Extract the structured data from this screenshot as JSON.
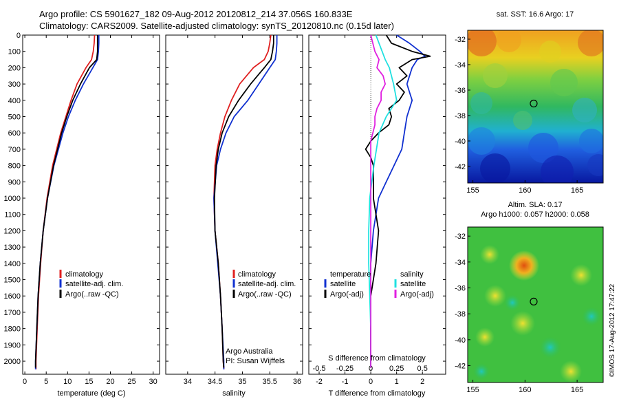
{
  "header": {
    "line1": "Argo profile: CS 5901627_182 09-Aug-2012 20120812_214 37.056S 160.833E",
    "line2": "Climatology: CARS2009. Satellite-adjusted climatology: synTS_20120810.nc (0.15d later)"
  },
  "colors": {
    "climatology": "#e02020",
    "satellite": "#1030d0",
    "argo": "#000000",
    "salinity_satellite": "#20e0e0",
    "salinity_argo": "#e020e0"
  },
  "chart_data": [
    {
      "type": "line",
      "panel": "temperature",
      "xlabel": "temperature (deg C)",
      "ylabel": "",
      "xlim": [
        -0.5,
        31.5
      ],
      "ylim": [
        2080,
        0
      ],
      "xticks": [
        "0",
        "5",
        "10",
        "15",
        "20",
        "25",
        "30"
      ],
      "yticks": [
        "0",
        "100",
        "200",
        "300",
        "400",
        "500",
        "600",
        "700",
        "800",
        "900",
        "1000",
        "1100",
        "1200",
        "1300",
        "1400",
        "1500",
        "1600",
        "1700",
        "1800",
        "1900",
        "2000"
      ],
      "legend": [
        "climatology",
        "satellite-adj. clim.",
        "Argo(..raw -QC)"
      ],
      "legend_placement": "lower-left",
      "series": [
        {
          "name": "climatology",
          "depth": [
            0,
            50,
            100,
            150,
            200,
            300,
            400,
            500,
            600,
            800,
            1000,
            1200,
            1400,
            1600,
            1800,
            2000,
            2050
          ],
          "values": [
            16.3,
            16.2,
            16.0,
            15.6,
            14.3,
            12.2,
            10.8,
            9.6,
            8.4,
            6.5,
            5.2,
            4.3,
            3.7,
            3.2,
            2.9,
            2.6,
            2.6
          ]
        },
        {
          "name": "satellite-adj. clim.",
          "depth": [
            0,
            50,
            100,
            150,
            200,
            300,
            400,
            500,
            600,
            800,
            1000,
            1200,
            1400,
            1600,
            1800,
            2000,
            2050
          ],
          "values": [
            17.3,
            17.3,
            17.2,
            17.0,
            15.9,
            13.7,
            11.8,
            10.2,
            8.9,
            6.8,
            5.3,
            4.3,
            3.6,
            3.1,
            2.8,
            2.5,
            2.5
          ]
        },
        {
          "name": "Argo(..raw -QC)",
          "depth": [
            0,
            50,
            100,
            150,
            200,
            300,
            400,
            500,
            600,
            800,
            1000,
            1200,
            1400,
            1600,
            1800,
            2000,
            2040
          ],
          "values": [
            17.0,
            17.0,
            17.0,
            16.8,
            15.1,
            13.0,
            11.2,
            9.8,
            8.6,
            6.7,
            5.3,
            4.3,
            3.6,
            3.1,
            2.8,
            2.5,
            2.5
          ]
        }
      ]
    },
    {
      "type": "line",
      "panel": "salinity",
      "xlabel": "salinity",
      "ylabel": "",
      "xlim": [
        33.6,
        36.1
      ],
      "ylim": [
        2080,
        0
      ],
      "xticks": [
        "34",
        "34.5",
        "35",
        "35.5",
        "36"
      ],
      "legend": [
        "climatology",
        "satellite-adj. clim.",
        "Argo(..raw -QC)"
      ],
      "legend_placement": "lower-left",
      "annotations": [
        "Argo Australia",
        "PI: Susan Wijffels"
      ],
      "series": [
        {
          "name": "climatology",
          "depth": [
            0,
            50,
            100,
            150,
            200,
            300,
            400,
            500,
            600,
            700,
            800,
            1000,
            1200,
            1400,
            1600,
            1800,
            2000,
            2050
          ],
          "values": [
            35.52,
            35.5,
            35.47,
            35.4,
            35.2,
            34.95,
            34.8,
            34.68,
            34.6,
            34.54,
            34.5,
            34.48,
            34.5,
            34.56,
            34.6,
            34.63,
            34.65,
            34.66
          ]
        },
        {
          "name": "satellite-adj. clim.",
          "depth": [
            0,
            50,
            100,
            150,
            200,
            300,
            400,
            500,
            600,
            700,
            800,
            1000,
            1200,
            1400,
            1600,
            1800,
            2000,
            2050
          ],
          "values": [
            35.63,
            35.63,
            35.62,
            35.6,
            35.5,
            35.3,
            35.1,
            34.85,
            34.7,
            34.6,
            34.53,
            34.48,
            34.5,
            34.55,
            34.6,
            34.63,
            34.66,
            34.66
          ]
        },
        {
          "name": "Argo(..raw -QC)",
          "depth": [
            0,
            50,
            100,
            150,
            200,
            300,
            400,
            500,
            600,
            700,
            800,
            1000,
            1200,
            1400,
            1600,
            1800,
            2000,
            2040
          ],
          "values": [
            35.57,
            35.57,
            35.55,
            35.52,
            35.4,
            35.15,
            34.93,
            34.75,
            34.63,
            34.56,
            34.52,
            34.49,
            34.5,
            34.56,
            34.6,
            34.63,
            34.65,
            34.66
          ]
        }
      ]
    },
    {
      "type": "line",
      "panel": "difference",
      "xlabel": "T difference from climatology",
      "x2label": "S difference from climatology",
      "xlim": [
        -2.4,
        2.9
      ],
      "ylim": [
        2080,
        0
      ],
      "xticks": [
        "-2",
        "-1",
        "0",
        "1",
        "2"
      ],
      "x2lim": [
        -0.6,
        0.725
      ],
      "x2ticks": [
        "-0.5",
        "-0.25",
        "0",
        "0.25",
        "0.5"
      ],
      "legend": [
        "temperature",
        "satellite",
        "Argo(-adj)",
        "salinity",
        "satellite",
        "Argo(-adj)"
      ],
      "legend_placement": "lower",
      "series": [
        {
          "name": "temperature satellite",
          "depth": [
            0,
            50,
            100,
            130,
            150,
            200,
            250,
            300,
            350,
            400,
            500,
            600,
            700,
            800,
            900,
            1000,
            1200,
            1400,
            1600,
            1800,
            2000,
            2040
          ],
          "values": [
            1.0,
            1.5,
            1.9,
            2.1,
            1.8,
            1.6,
            1.5,
            1.4,
            1.5,
            1.6,
            1.4,
            1.3,
            1.2,
            0.9,
            0.6,
            0.3,
            0.1,
            0.0,
            0.0,
            0.0,
            0.0,
            0.0
          ]
        },
        {
          "name": "temperature Argo(-adj)",
          "depth": [
            0,
            50,
            100,
            130,
            150,
            200,
            250,
            300,
            350,
            400,
            450,
            500,
            550,
            600,
            650,
            700,
            750,
            800,
            1000,
            1200,
            1400,
            1600,
            1800,
            2000,
            2040
          ],
          "values": [
            0.6,
            0.8,
            1.6,
            2.3,
            1.6,
            1.1,
            1.4,
            1.0,
            1.3,
            1.1,
            0.7,
            0.8,
            0.7,
            0.3,
            0.0,
            -0.2,
            0.0,
            0.1,
            0.1,
            0.3,
            0.2,
            0.0,
            0.0,
            0.0,
            0.0
          ]
        },
        {
          "name": "salinity satellite",
          "depth": [
            0,
            50,
            100,
            150,
            200,
            300,
            400,
            500,
            600,
            800,
            1000,
            1200,
            1400,
            1600,
            1800,
            2000,
            2040
          ],
          "values": [
            0.05,
            0.08,
            0.11,
            0.14,
            0.18,
            0.22,
            0.25,
            0.15,
            0.08,
            0.03,
            -0.01,
            -0.02,
            -0.02,
            -0.01,
            0.0,
            0.0,
            0.0
          ]
        },
        {
          "name": "salinity Argo(-adj)",
          "depth": [
            0,
            50,
            100,
            150,
            200,
            250,
            300,
            350,
            400,
            450,
            500,
            550,
            600,
            650,
            700,
            800,
            1000,
            1200,
            1400,
            1600,
            1800,
            2000,
            2040
          ],
          "values": [
            0.0,
            0.02,
            0.04,
            0.08,
            0.06,
            0.12,
            0.14,
            0.1,
            0.1,
            0.06,
            0.04,
            0.04,
            0.02,
            0.0,
            0.0,
            0.0,
            0.0,
            0.0,
            0.0,
            0.0,
            0.0,
            0.0,
            0.0
          ]
        }
      ]
    },
    {
      "type": "heatmap",
      "panel": "sst_map",
      "title": "sat. SST: 16.6  Argo: 17",
      "xlim": [
        154.5,
        167.5
      ],
      "ylim": [
        -43.3,
        -31.3
      ],
      "xticks": [
        "155",
        "160",
        "165"
      ],
      "yticks": [
        "-32",
        "-34",
        "-36",
        "-38",
        "-40",
        "-42"
      ],
      "marker": {
        "lon": 160.833,
        "lat": -37.056
      }
    },
    {
      "type": "heatmap",
      "panel": "sla_map",
      "title": "Altim. SLA: 0.17",
      "subtitle": "Argo h1000: 0.057 h2000: 0.058",
      "xlim": [
        154.5,
        167.5
      ],
      "ylim": [
        -43.3,
        -31.3
      ],
      "xticks": [
        "155",
        "160",
        "165"
      ],
      "yticks": [
        "-32",
        "-34",
        "-36",
        "-38",
        "-40",
        "-42"
      ],
      "marker": {
        "lon": 160.833,
        "lat": -37.056
      }
    }
  ],
  "footer": {
    "credit": "©IMOS 17-Aug-2012 17:47:22"
  }
}
